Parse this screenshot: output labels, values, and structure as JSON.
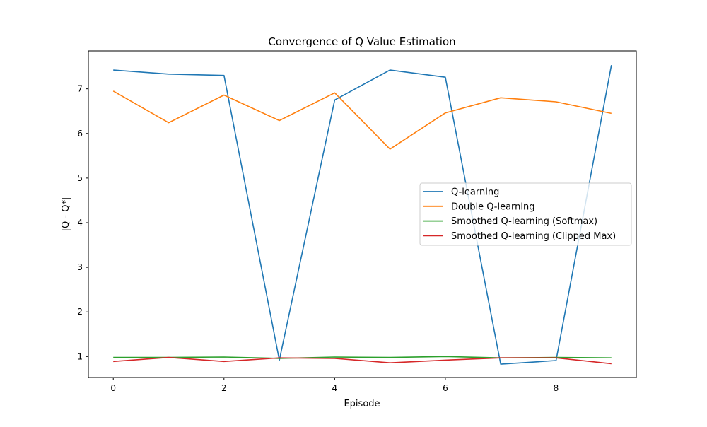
{
  "chart_data": {
    "type": "line",
    "title": "Convergence of Q Value Estimation",
    "xlabel": "Episode",
    "ylabel": "|Q - Q*|",
    "x": [
      0,
      1,
      2,
      3,
      4,
      5,
      6,
      7,
      8,
      9
    ],
    "xlim": [
      -0.45,
      9.45
    ],
    "ylim": [
      0.53,
      7.85
    ],
    "xticks": [
      0,
      2,
      4,
      6,
      8
    ],
    "yticks": [
      1,
      2,
      3,
      4,
      5,
      6,
      7
    ],
    "grid": false,
    "legend_position": "center-right",
    "series": [
      {
        "name": "Q-learning",
        "color": "#1f77b4",
        "values": [
          7.42,
          7.33,
          7.3,
          0.92,
          6.75,
          7.42,
          7.26,
          0.83,
          0.91,
          7.53
        ]
      },
      {
        "name": "Double Q-learning",
        "color": "#ff7f0e",
        "values": [
          6.95,
          6.24,
          6.86,
          6.29,
          6.91,
          5.65,
          6.46,
          6.8,
          6.71,
          6.45
        ]
      },
      {
        "name": "Smoothed Q-learning (Softmax)",
        "color": "#2ca02c",
        "values": [
          0.98,
          0.98,
          0.99,
          0.96,
          0.99,
          0.98,
          1.0,
          0.97,
          0.98,
          0.97
        ]
      },
      {
        "name": "Smoothed Q-learning (Clipped Max)",
        "color": "#d62728",
        "values": [
          0.89,
          0.98,
          0.89,
          0.97,
          0.96,
          0.86,
          0.92,
          0.97,
          0.97,
          0.84
        ]
      }
    ]
  }
}
